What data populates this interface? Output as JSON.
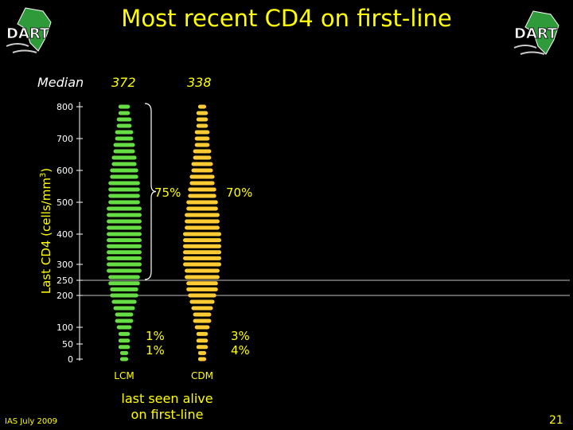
{
  "slide": {
    "title": "Most recent CD4 on first-line",
    "median_label": "Median",
    "bottom_caption_line1": "last seen alive",
    "bottom_caption_line2": "on first-line",
    "footer_left": "IAS July 2009",
    "page_number": "21",
    "logo_text": "DART"
  },
  "chart_data": {
    "type": "scatter",
    "title": "Most recent CD4 on first-line",
    "ylabel": "Last CD4 (cells/mm3)",
    "ylabel_main": "Last CD4 (cells/mm",
    "ylabel_sup": "3",
    "ylabel_end": ")",
    "ylim": [
      0,
      800
    ],
    "yticks": [
      "800",
      "700",
      "600",
      "500",
      "400",
      "300",
      "250",
      "200",
      "100",
      "50",
      "0"
    ],
    "ytick_values": [
      800,
      700,
      600,
      500,
      400,
      300,
      250,
      200,
      100,
      50,
      0
    ],
    "reference_lines": [
      250,
      200
    ],
    "categories": [
      "LCM",
      "CDM"
    ],
    "medians": [
      "372",
      "338"
    ],
    "median_values": [
      372,
      338
    ],
    "colors": {
      "LCM": "#66dd44",
      "CDM": "#ffcc33",
      "accent": "#ffff00"
    },
    "annotations": {
      "lcm_above_200": "75%",
      "cdm_above_200": "70%",
      "lcm_50_100": "1%",
      "lcm_below_50": "1%",
      "cdm_50_100": "3%",
      "cdm_below_50": "4%"
    },
    "series": [
      {
        "name": "LCM",
        "bins": [
          [
            0,
            1
          ],
          [
            20,
            1
          ],
          [
            40,
            2
          ],
          [
            60,
            2
          ],
          [
            80,
            2
          ],
          [
            100,
            3
          ],
          [
            120,
            4
          ],
          [
            140,
            4
          ],
          [
            160,
            5
          ],
          [
            180,
            6
          ],
          [
            200,
            7
          ],
          [
            220,
            7
          ],
          [
            240,
            8
          ],
          [
            260,
            8
          ],
          [
            280,
            9
          ],
          [
            300,
            9
          ],
          [
            320,
            9
          ],
          [
            340,
            9
          ],
          [
            360,
            9
          ],
          [
            380,
            9
          ],
          [
            400,
            9
          ],
          [
            420,
            9
          ],
          [
            440,
            9
          ],
          [
            460,
            9
          ],
          [
            480,
            9
          ],
          [
            500,
            8
          ],
          [
            520,
            8
          ],
          [
            540,
            8
          ],
          [
            560,
            8
          ],
          [
            580,
            7
          ],
          [
            600,
            7
          ],
          [
            620,
            6
          ],
          [
            640,
            6
          ],
          [
            660,
            5
          ],
          [
            680,
            5
          ],
          [
            700,
            4
          ],
          [
            720,
            4
          ],
          [
            740,
            3
          ],
          [
            760,
            3
          ],
          [
            780,
            2
          ],
          [
            800,
            2
          ]
        ]
      },
      {
        "name": "CDM",
        "bins": [
          [
            0,
            1
          ],
          [
            20,
            1
          ],
          [
            40,
            2
          ],
          [
            60,
            2
          ],
          [
            80,
            2
          ],
          [
            100,
            3
          ],
          [
            120,
            4
          ],
          [
            140,
            4
          ],
          [
            160,
            5
          ],
          [
            180,
            6
          ],
          [
            200,
            7
          ],
          [
            220,
            8
          ],
          [
            240,
            8
          ],
          [
            260,
            9
          ],
          [
            280,
            9
          ],
          [
            300,
            10
          ],
          [
            320,
            10
          ],
          [
            340,
            10
          ],
          [
            360,
            10
          ],
          [
            380,
            10
          ],
          [
            400,
            10
          ],
          [
            420,
            9
          ],
          [
            440,
            9
          ],
          [
            460,
            9
          ],
          [
            480,
            8
          ],
          [
            500,
            8
          ],
          [
            520,
            7
          ],
          [
            540,
            7
          ],
          [
            560,
            6
          ],
          [
            580,
            6
          ],
          [
            600,
            5
          ],
          [
            620,
            5
          ],
          [
            640,
            4
          ],
          [
            660,
            4
          ],
          [
            680,
            3
          ],
          [
            700,
            3
          ],
          [
            720,
            3
          ],
          [
            740,
            2
          ],
          [
            760,
            2
          ],
          [
            780,
            2
          ],
          [
            800,
            1
          ]
        ]
      }
    ]
  }
}
